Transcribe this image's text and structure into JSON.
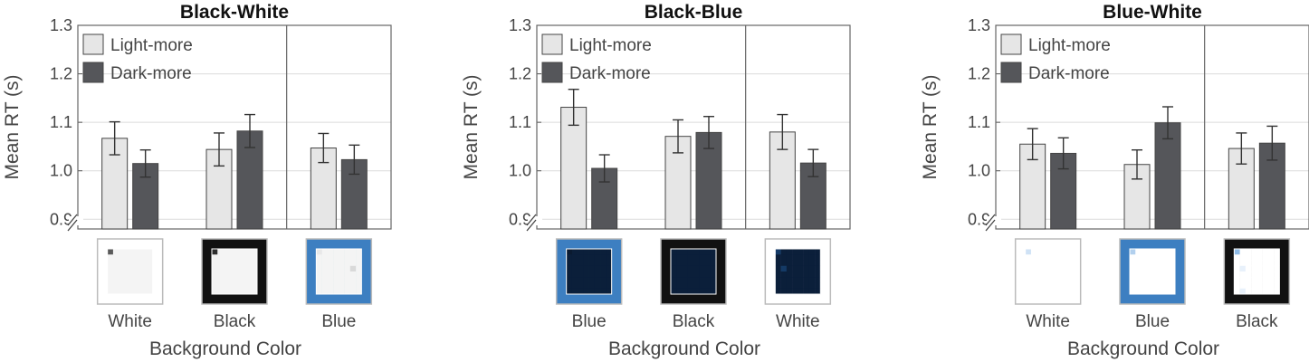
{
  "chart_data": [
    {
      "type": "bar",
      "title": "Black-White",
      "xlabel": "Background Color",
      "ylabel": "Mean RT (s)",
      "ylim": [
        0.88,
        1.3
      ],
      "yticks": [
        "0.9",
        "1.0",
        "1.1",
        "1.2",
        "1.3"
      ],
      "categories": [
        "White",
        "Black",
        "Blue"
      ],
      "background_colors": [
        "#ffffff",
        "#111111",
        "#3d7fc1"
      ],
      "pattern_palette": "gray",
      "series": [
        {
          "name": "Light-more",
          "color": "#e6e6e6",
          "values": [
            1.067,
            1.044,
            1.047
          ],
          "errors": [
            0.034,
            0.034,
            0.03
          ]
        },
        {
          "name": "Dark-more",
          "color": "#55565a",
          "values": [
            1.015,
            1.082,
            1.023
          ],
          "errors": [
            0.028,
            0.034,
            0.03
          ]
        }
      ],
      "legend": "top-left",
      "grid": "horizontal"
    },
    {
      "type": "bar",
      "title": "Black-Blue",
      "xlabel": "Background Color",
      "ylabel": "Mean RT (s)",
      "ylim": [
        0.88,
        1.3
      ],
      "yticks": [
        "0.9",
        "1.0",
        "1.1",
        "1.2",
        "1.3"
      ],
      "categories": [
        "Blue",
        "Black",
        "White"
      ],
      "background_colors": [
        "#3d7fc1",
        "#111111",
        "#ffffff"
      ],
      "pattern_palette": "blue-dark",
      "series": [
        {
          "name": "Light-more",
          "color": "#e6e6e6",
          "values": [
            1.131,
            1.071,
            1.08
          ],
          "errors": [
            0.037,
            0.034,
            0.036
          ]
        },
        {
          "name": "Dark-more",
          "color": "#55565a",
          "values": [
            1.005,
            1.079,
            1.016
          ],
          "errors": [
            0.028,
            0.033,
            0.028
          ]
        }
      ],
      "legend": "top-left",
      "grid": "horizontal"
    },
    {
      "type": "bar",
      "title": "Blue-White",
      "xlabel": "Background Color",
      "ylabel": "Mean RT (s)",
      "ylim": [
        0.88,
        1.3
      ],
      "yticks": [
        "0.9",
        "1.0",
        "1.1",
        "1.2",
        "1.3"
      ],
      "categories": [
        "White",
        "Blue",
        "Black"
      ],
      "background_colors": [
        "#ffffff",
        "#3d7fc1",
        "#111111"
      ],
      "pattern_palette": "blue-light",
      "series": [
        {
          "name": "Light-more",
          "color": "#e6e6e6",
          "values": [
            1.055,
            1.013,
            1.046
          ],
          "errors": [
            0.032,
            0.03,
            0.032
          ]
        },
        {
          "name": "Dark-more",
          "color": "#55565a",
          "values": [
            1.036,
            1.099,
            1.057
          ],
          "errors": [
            0.032,
            0.033,
            0.035
          ]
        }
      ],
      "legend": "top-left",
      "grid": "horizontal"
    }
  ]
}
